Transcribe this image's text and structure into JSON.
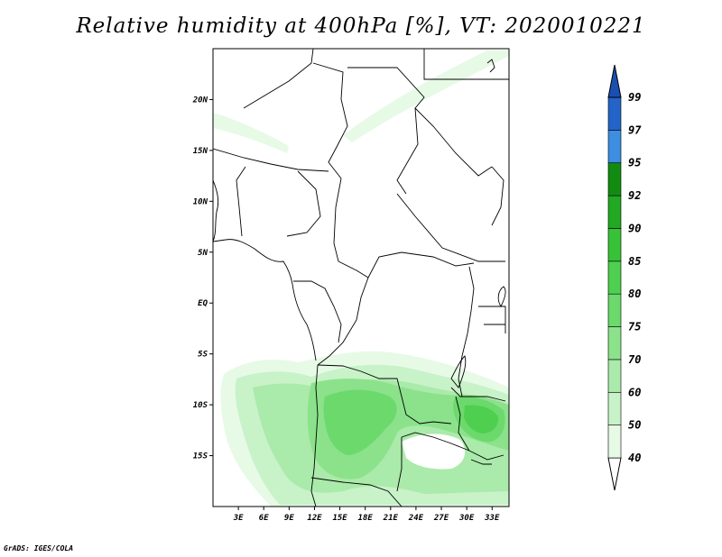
{
  "title": "Relative humidity at 400hPa [%], VT: 2020010221",
  "credit": "GrADS: IGES/COLA",
  "map": {
    "lon_range": [
      0,
      35
    ],
    "lat_range": [
      -20,
      25
    ],
    "lat_ticks": [
      {
        "label": "20N",
        "value": 20
      },
      {
        "label": "15N",
        "value": 15
      },
      {
        "label": "10N",
        "value": 10
      },
      {
        "label": "5N",
        "value": 5
      },
      {
        "label": "EQ",
        "value": 0
      },
      {
        "label": "5S",
        "value": -5
      },
      {
        "label": "10S",
        "value": -10
      },
      {
        "label": "15S",
        "value": -15
      }
    ],
    "lon_ticks": [
      {
        "label": "3E",
        "value": 3
      },
      {
        "label": "6E",
        "value": 6
      },
      {
        "label": "9E",
        "value": 9
      },
      {
        "label": "12E",
        "value": 12
      },
      {
        "label": "15E",
        "value": 15
      },
      {
        "label": "18E",
        "value": 18
      },
      {
        "label": "21E",
        "value": 21
      },
      {
        "label": "24E",
        "value": 24
      },
      {
        "label": "27E",
        "value": 27
      },
      {
        "label": "30E",
        "value": 30
      },
      {
        "label": "33E",
        "value": 33
      }
    ]
  },
  "colorbar": {
    "levels": [
      {
        "label": "40",
        "color": "#ffffff"
      },
      {
        "label": "50",
        "color": "#e6fae6"
      },
      {
        "label": "60",
        "color": "#c8f2c8"
      },
      {
        "label": "70",
        "color": "#aaeaaa"
      },
      {
        "label": "75",
        "color": "#8be28b"
      },
      {
        "label": "80",
        "color": "#6cd96c"
      },
      {
        "label": "85",
        "color": "#4fcf4f"
      },
      {
        "label": "90",
        "color": "#38c238"
      },
      {
        "label": "92",
        "color": "#22a822"
      },
      {
        "label": "95",
        "color": "#118c11"
      },
      {
        "label": "97",
        "color": "#3d8de0"
      },
      {
        "label": "99",
        "color": "#2463c8"
      }
    ],
    "top_color": "#1a4fb0"
  }
}
